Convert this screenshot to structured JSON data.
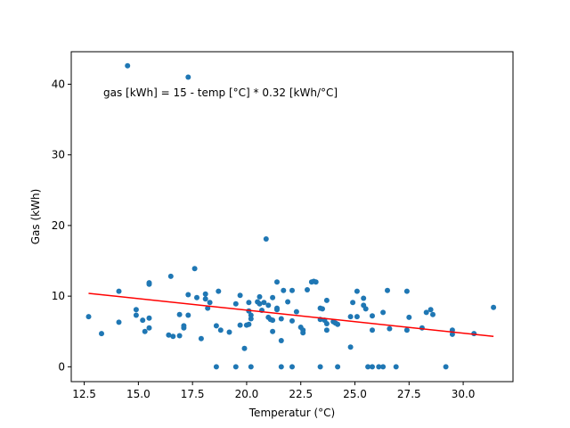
{
  "chart_data": {
    "type": "scatter",
    "title": "",
    "xlabel": "Temperatur (°C)",
    "ylabel": "Gas (kWh)",
    "xlim": [
      11.9,
      32.3
    ],
    "ylim": [
      -2.1,
      44.6
    ],
    "xticks": [
      12.5,
      15.0,
      17.5,
      20.0,
      22.5,
      25.0,
      27.5,
      30.0
    ],
    "xtick_labels": [
      "12.5",
      "15.0",
      "17.5",
      "20.0",
      "22.5",
      "25.0",
      "27.5",
      "30.0"
    ],
    "yticks": [
      0,
      10,
      20,
      30,
      40
    ],
    "ytick_labels": [
      "0",
      "10",
      "20",
      "30",
      "40"
    ],
    "grid": false,
    "annotation": "gas [kWh] = 15 - temp [°C] * 0.32 [kWh/°C]",
    "point_color": "#1f77b4",
    "fit_color": "#ff0000",
    "fit_line": {
      "x": [
        12.7,
        31.4
      ],
      "y": [
        10.4,
        4.3
      ]
    },
    "points": [
      [
        12.7,
        7.1
      ],
      [
        13.3,
        4.7
      ],
      [
        14.1,
        10.7
      ],
      [
        14.1,
        6.3
      ],
      [
        14.5,
        42.6
      ],
      [
        14.9,
        8.1
      ],
      [
        14.9,
        7.3
      ],
      [
        15.2,
        6.6
      ],
      [
        15.3,
        5.0
      ],
      [
        15.5,
        11.9
      ],
      [
        15.5,
        11.7
      ],
      [
        15.5,
        6.9
      ],
      [
        15.5,
        5.5
      ],
      [
        16.4,
        4.5
      ],
      [
        16.5,
        12.8
      ],
      [
        16.6,
        4.3
      ],
      [
        16.9,
        4.4
      ],
      [
        16.9,
        7.4
      ],
      [
        17.1,
        5.8
      ],
      [
        17.1,
        5.5
      ],
      [
        17.3,
        10.2
      ],
      [
        17.3,
        41.0
      ],
      [
        17.3,
        7.3
      ],
      [
        17.6,
        13.9
      ],
      [
        17.7,
        9.8
      ],
      [
        17.9,
        4.0
      ],
      [
        18.1,
        10.3
      ],
      [
        18.1,
        9.6
      ],
      [
        18.2,
        8.3
      ],
      [
        18.3,
        9.1
      ],
      [
        18.6,
        5.8
      ],
      [
        18.6,
        0.0
      ],
      [
        18.7,
        10.7
      ],
      [
        18.8,
        5.2
      ],
      [
        19.2,
        4.9
      ],
      [
        19.5,
        8.9
      ],
      [
        19.5,
        0.0
      ],
      [
        19.7,
        10.1
      ],
      [
        19.7,
        5.9
      ],
      [
        19.9,
        2.6
      ],
      [
        20.0,
        5.9
      ],
      [
        20.1,
        9.1
      ],
      [
        20.1,
        6.0
      ],
      [
        20.1,
        7.9
      ],
      [
        20.2,
        7.3
      ],
      [
        20.2,
        6.8
      ],
      [
        20.2,
        0.0
      ],
      [
        20.5,
        9.2
      ],
      [
        20.6,
        9.9
      ],
      [
        20.6,
        8.9
      ],
      [
        20.7,
        8.0
      ],
      [
        20.8,
        9.1
      ],
      [
        20.9,
        18.1
      ],
      [
        21.0,
        8.7
      ],
      [
        21.0,
        7.0
      ],
      [
        21.1,
        6.7
      ],
      [
        21.2,
        9.8
      ],
      [
        21.2,
        5.0
      ],
      [
        21.2,
        6.6
      ],
      [
        21.4,
        8.3
      ],
      [
        21.4,
        12.0
      ],
      [
        21.4,
        8.1
      ],
      [
        21.6,
        3.7
      ],
      [
        21.6,
        6.8
      ],
      [
        21.6,
        0.0
      ],
      [
        21.7,
        10.8
      ],
      [
        21.9,
        9.2
      ],
      [
        22.1,
        6.5
      ],
      [
        22.1,
        10.8
      ],
      [
        22.1,
        0.0
      ],
      [
        22.3,
        7.8
      ],
      [
        22.5,
        5.6
      ],
      [
        22.6,
        5.2
      ],
      [
        22.6,
        4.8
      ],
      [
        22.8,
        10.9
      ],
      [
        23.0,
        12.0
      ],
      [
        23.1,
        12.1
      ],
      [
        23.2,
        12.0
      ],
      [
        23.4,
        8.3
      ],
      [
        23.4,
        6.7
      ],
      [
        23.4,
        0.0
      ],
      [
        23.5,
        8.2
      ],
      [
        23.6,
        6.6
      ],
      [
        23.7,
        6.1
      ],
      [
        23.7,
        9.4
      ],
      [
        23.7,
        5.2
      ],
      [
        24.0,
        6.4
      ],
      [
        24.1,
        6.2
      ],
      [
        24.2,
        6.0
      ],
      [
        24.2,
        0.0
      ],
      [
        24.8,
        7.1
      ],
      [
        24.8,
        2.8
      ],
      [
        24.9,
        9.1
      ],
      [
        25.1,
        10.7
      ],
      [
        25.1,
        7.1
      ],
      [
        25.4,
        9.7
      ],
      [
        25.4,
        8.7
      ],
      [
        25.5,
        8.2
      ],
      [
        25.6,
        0.0
      ],
      [
        25.8,
        7.2
      ],
      [
        25.8,
        5.2
      ],
      [
        25.8,
        0.0
      ],
      [
        26.1,
        0.0
      ],
      [
        26.3,
        7.7
      ],
      [
        26.3,
        0.0
      ],
      [
        26.5,
        10.8
      ],
      [
        26.6,
        5.4
      ],
      [
        26.9,
        0.0
      ],
      [
        27.4,
        10.7
      ],
      [
        27.4,
        5.2
      ],
      [
        27.5,
        7.0
      ],
      [
        28.1,
        5.5
      ],
      [
        28.3,
        7.7
      ],
      [
        28.5,
        8.1
      ],
      [
        28.6,
        7.4
      ],
      [
        29.2,
        0.0
      ],
      [
        29.5,
        5.2
      ],
      [
        29.5,
        4.6
      ],
      [
        30.5,
        4.7
      ],
      [
        31.4,
        8.4
      ]
    ]
  }
}
